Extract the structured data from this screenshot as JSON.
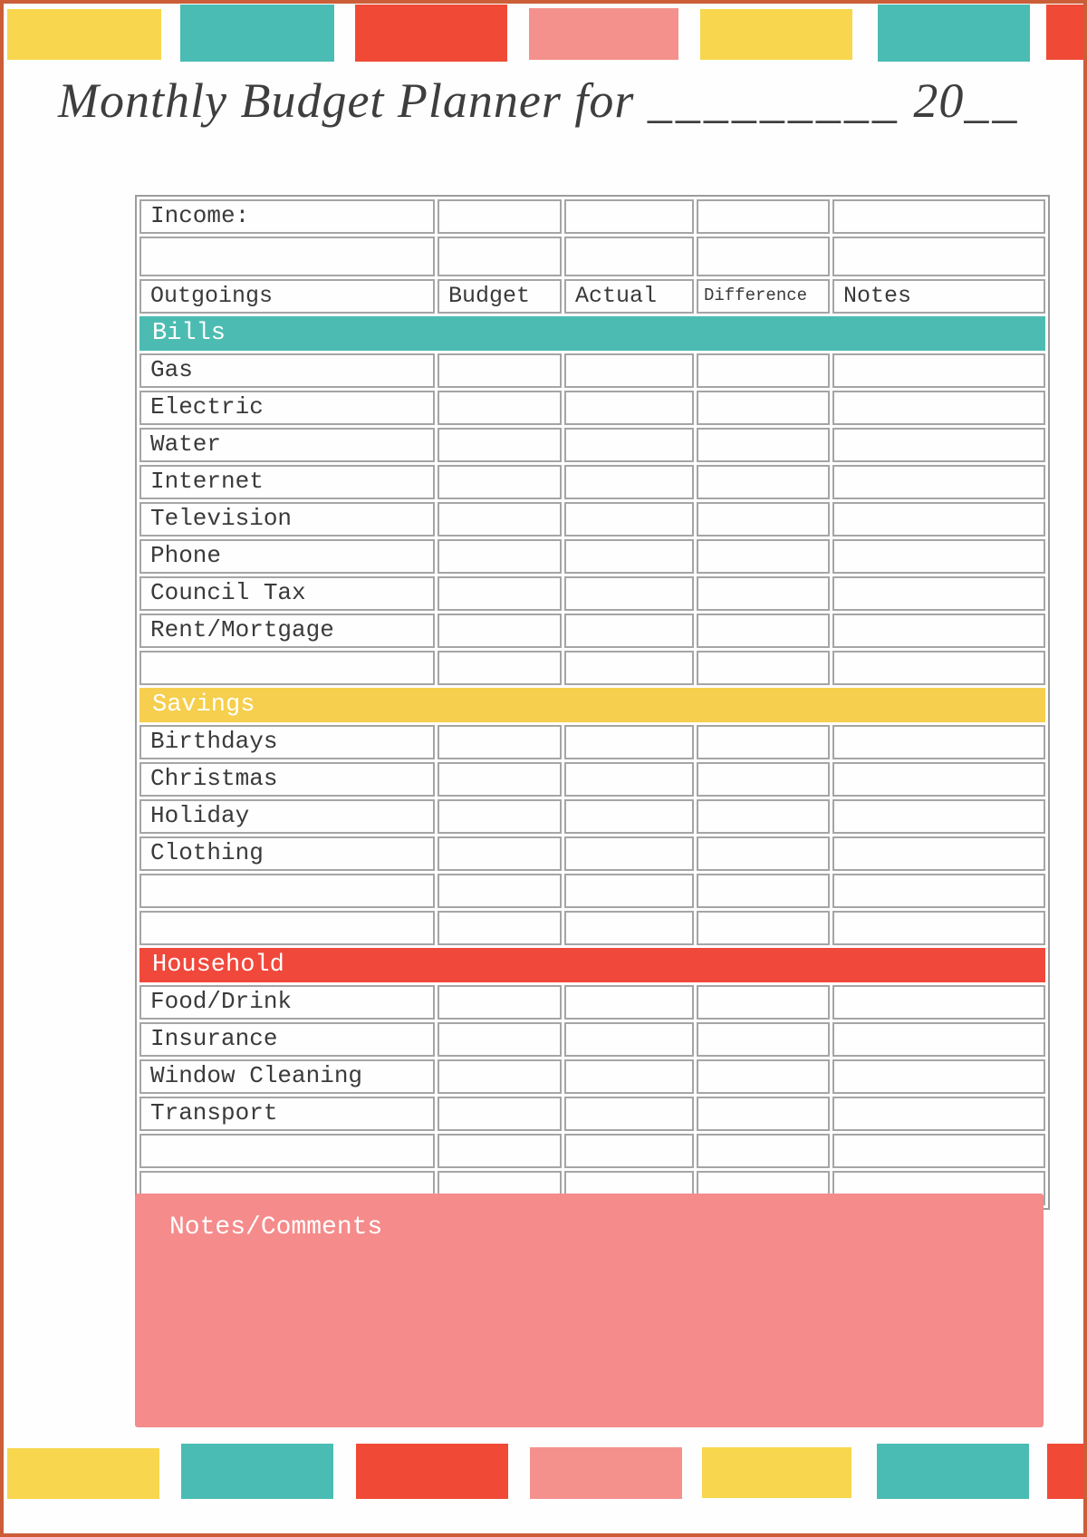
{
  "palette": {
    "yellow": "#f8d74e",
    "teal": "#4abcb3",
    "red": "#f04a37",
    "pink": "#f5918c",
    "section_teal": "#4cbcb2",
    "section_yellow": "#f5cf4d",
    "section_red": "#f0483b",
    "notes_pink": "#f58b8b",
    "page_border_orange": "#cb5e38",
    "grid_gray": "#a5a5a5",
    "text_gray": "#3a3a3a"
  },
  "decorative_blocks": {
    "top_colors": [
      "yellow",
      "teal",
      "red",
      "pink",
      "yellow",
      "teal",
      "red"
    ],
    "bottom_colors": [
      "yellow",
      "teal",
      "red",
      "pink",
      "yellow",
      "teal",
      "red"
    ]
  },
  "title": {
    "script_text": "Monthly Budget Planner for",
    "month_blank": "_________",
    "year_text": "20",
    "year_blank": "__"
  },
  "table": {
    "income_label": "Income:",
    "column_headers": [
      "Outgoings",
      "Budget",
      "Actual",
      "Difference",
      "Notes"
    ],
    "sections": [
      {
        "name": "Bills",
        "color_key": "section_teal",
        "items": [
          "Gas",
          "Electric",
          "Water",
          "Internet",
          "Television",
          "Phone",
          "Council Tax",
          "Rent/Mortgage"
        ],
        "empty_rows_after": 1
      },
      {
        "name": "Savings",
        "color_key": "section_yellow",
        "items": [
          "Birthdays",
          "Christmas",
          "Holiday",
          "Clothing"
        ],
        "empty_rows_after": 2
      },
      {
        "name": "Household",
        "color_key": "section_red",
        "items": [
          "Food/Drink",
          "Insurance",
          "Window Cleaning",
          "Transport"
        ],
        "empty_rows_after": 2
      }
    ]
  },
  "notes": {
    "label": "Notes/Comments"
  }
}
